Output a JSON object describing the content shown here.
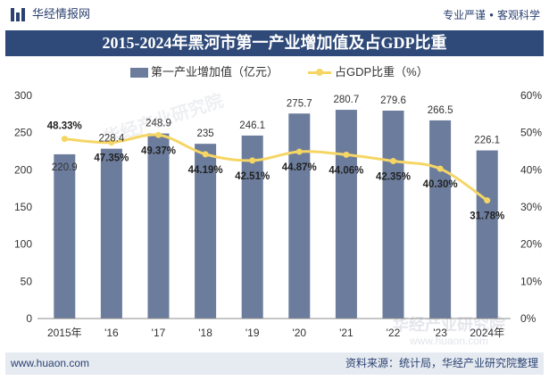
{
  "header": {
    "site_name": "华经情报网",
    "slogan_left": "专业严谨",
    "slogan_sep": "●",
    "slogan_right": "客观科学"
  },
  "icons": {
    "logo": "bar-chart-logo-icon"
  },
  "colors": {
    "title_bar": "#2f4a79",
    "accent": "#2b4170",
    "footer_bg": "#e6ebf2"
  },
  "chart_data": {
    "type": "bar",
    "title": "2015-2024年黑河市第一产业增加值及占GDP比重",
    "categories": [
      "2015年",
      "'16",
      "'17",
      "'18",
      "'19",
      "'20",
      "'21",
      "'22",
      "'23",
      "2024年"
    ],
    "series": [
      {
        "name": "第一产业增加值（亿元）",
        "type": "bar",
        "axis": "left",
        "color": "#6b7c9c",
        "values": [
          220.9,
          228.4,
          248.9,
          235,
          246.1,
          275.7,
          280.7,
          279.6,
          266.5,
          226.1
        ]
      },
      {
        "name": "占GDP比重（%）",
        "type": "line",
        "axis": "right",
        "color": "#f5d665",
        "values": [
          48.33,
          47.35,
          49.37,
          44.19,
          42.51,
          44.87,
          44.06,
          42.35,
          40.3,
          31.78
        ],
        "labels": [
          "48.33%",
          "47.35%",
          "49.37%",
          "44.19%",
          "42.51%",
          "44.87%",
          "44.06%",
          "42.35%",
          "40.30%",
          "31.78%"
        ]
      }
    ],
    "ylim": [
      0,
      300
    ],
    "y_ticks": [
      0,
      50,
      100,
      150,
      200,
      250,
      300
    ],
    "y2lim": [
      0,
      60
    ],
    "y2_ticks": [
      0,
      10,
      20,
      30,
      40,
      50,
      60
    ],
    "y2_tick_labels": [
      "0%",
      "10%",
      "20%",
      "30%",
      "40%",
      "50%",
      "60%"
    ],
    "grid": false,
    "legend_position": "top"
  },
  "watermark": {
    "text": "华经产业研究院",
    "url": "www.huaon.com"
  },
  "footer": {
    "website": "www.huaon.com",
    "source": "资料来源：统计局，华经产业研究院整理"
  }
}
